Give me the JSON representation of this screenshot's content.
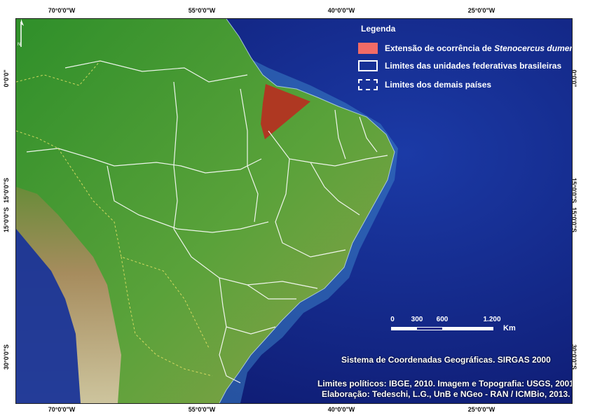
{
  "ticks": {
    "top": [
      "70°0'0\"W",
      "55°0'0\"W",
      "40°0'0\"W",
      "25°0'0\"W"
    ],
    "bottom": [
      "70°0'0\"W",
      "55°0'0\"W",
      "40°0'0\"W",
      "25°0'0\"W"
    ],
    "left": [
      "0°0'0\"",
      "15°0'0\"S",
      "15°0'0\"S",
      "30°0'0\"S"
    ],
    "right": [
      "0°0'0\"",
      "15°0'0\"S",
      "15°0'0\"S",
      "30°0'0\"S"
    ]
  },
  "legend": {
    "title": "Legenda",
    "occurrence_prefix": "Extensão de ocorrência de ",
    "occurrence_species": "Stenocercus dumerilii",
    "brazil_states": "Limites das unidades federativas brasileiras",
    "other_countries": "Limites dos demais países"
  },
  "scale": {
    "labels": [
      "0",
      "300",
      "600",
      "1.200"
    ],
    "unit": "Km"
  },
  "north_label": "N",
  "coordinate_system": "Sistema de Coordenadas Geográficas. SIRGAS 2000",
  "credits": {
    "sources": "Limites políticos: IBGE, 2010. Imagem e Topografia: USGS, 2001",
    "authors": "Elaboração: Tedeschi, L.G., UnB e NGeo - RAN / ICMBio, 2013."
  },
  "colors": {
    "ocean": "#14248a",
    "land": "#3e9a32",
    "occurrence": "#c0261e",
    "boundary": "#ffffff"
  }
}
